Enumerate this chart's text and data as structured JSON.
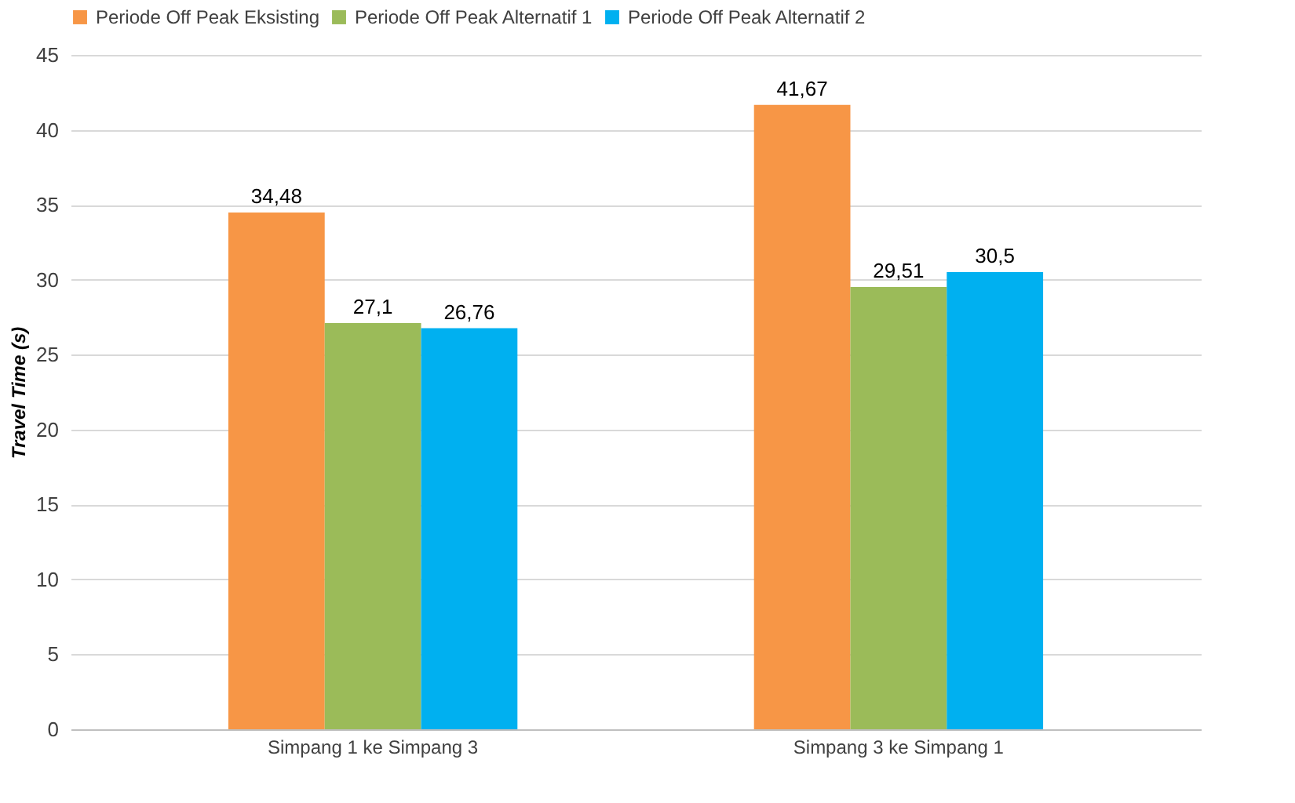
{
  "chart_data": {
    "type": "bar",
    "ylabel": "Travel Time (s)",
    "categories": [
      "Simpang 1 ke Simpang 3",
      "Simpang 3 ke Simpang 1"
    ],
    "series": [
      {
        "name": "Periode Off Peak Eksisting",
        "color": "#f79646",
        "values": [
          34.48,
          41.67
        ],
        "value_labels": [
          "34,48",
          "41,67"
        ]
      },
      {
        "name": "Periode Off Peak Alternatif 1",
        "color": "#9bbb59",
        "values": [
          27.1,
          29.51
        ],
        "value_labels": [
          "27,1",
          "29,51"
        ]
      },
      {
        "name": "Periode Off Peak Alternatif 2",
        "color": "#00b0f0",
        "values": [
          26.76,
          30.5
        ],
        "value_labels": [
          "26,76",
          "30,5"
        ]
      }
    ],
    "ylim": [
      0,
      45
    ],
    "yticks": [
      0,
      5,
      10,
      15,
      20,
      25,
      30,
      35,
      40,
      45
    ],
    "grid": "y",
    "legend": "top"
  }
}
